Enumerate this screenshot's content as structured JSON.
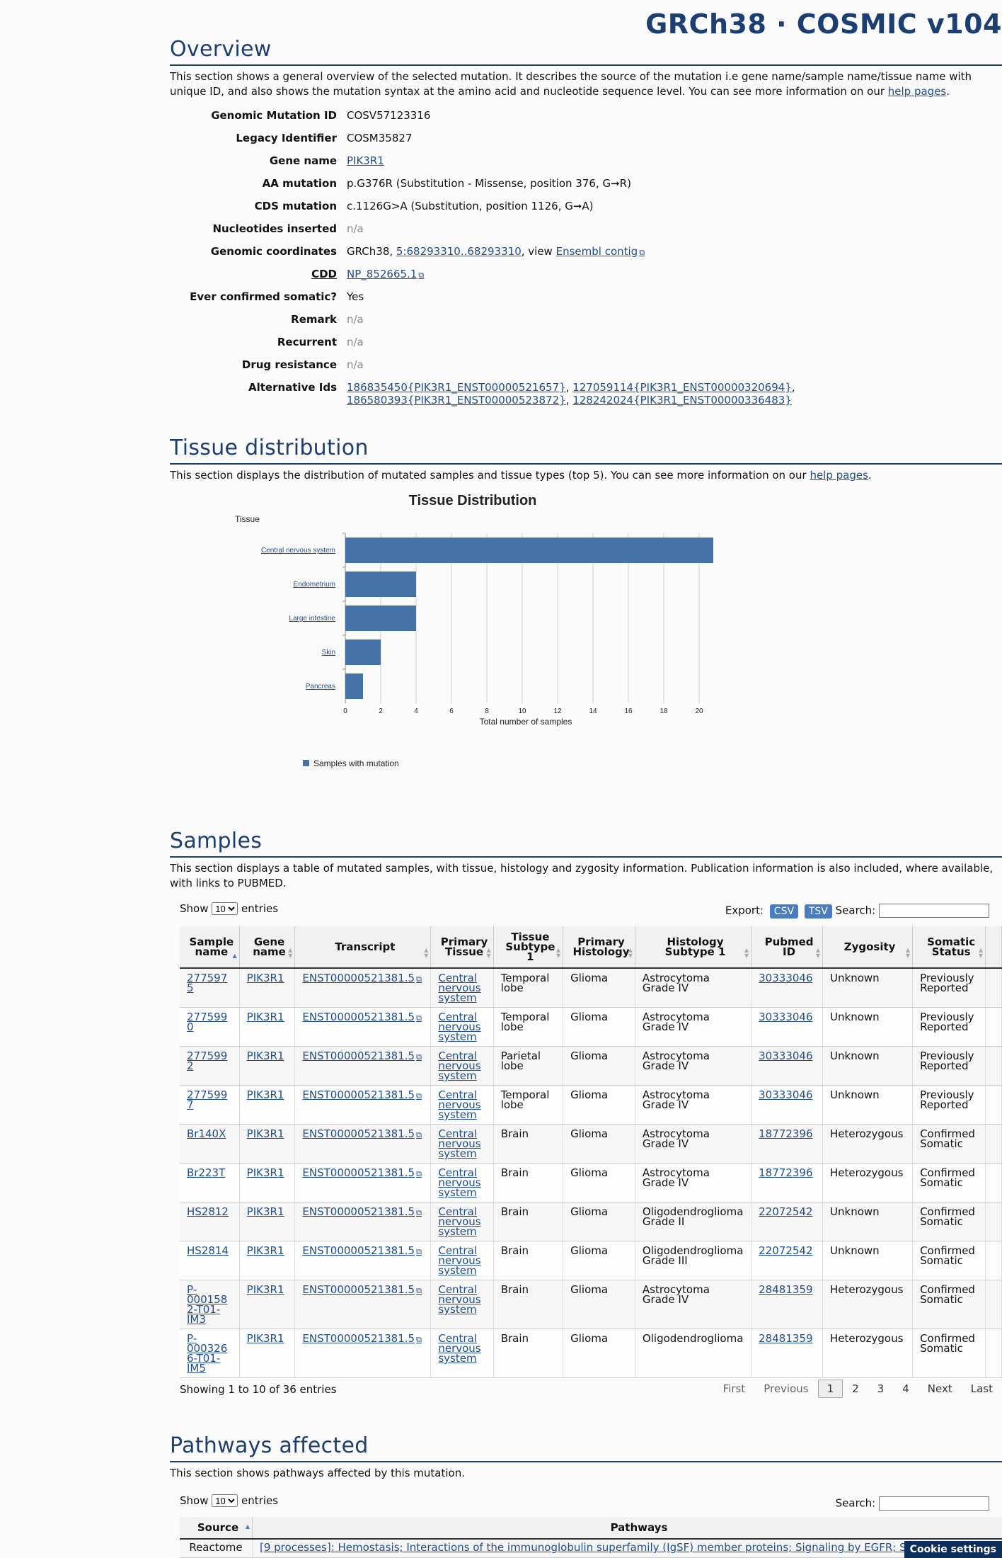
{
  "brand": "GRCh38 · COSMIC v104",
  "overview": {
    "title": "Overview",
    "desc_1": "This section shows a general overview of the selected mutation. It describes the source of the mutation i.e gene name/sample name/tissue name with unique ID, and also shows the mutation syntax at the amino acid and nucleotide sequence level. You can see more information on our ",
    "desc_link": "help pages",
    "desc_end": ".",
    "rows": [
      {
        "label": "Genomic Mutation ID",
        "value": "COSV57123316"
      },
      {
        "label": "Legacy Identifier",
        "value": "COSM35827"
      },
      {
        "label": "Gene name",
        "link": "PIK3R1"
      },
      {
        "label": "AA mutation",
        "value": "p.G376R (Substitution - Missense, position 376, G➞R)"
      },
      {
        "label": "CDS mutation",
        "value": "c.1126G>A (Substitution, position 1126, G➞A)"
      },
      {
        "label": "Nucleotides inserted",
        "na": "n/a"
      },
      {
        "label": "Genomic coordinates",
        "pre": "GRCh38, ",
        "link": "5:68293310..68293310",
        "mid": ", view ",
        "link2": "Ensembl contig"
      },
      {
        "label": "CDD",
        "link": "NP_852665.1"
      },
      {
        "label": "Ever confirmed somatic?",
        "value": "Yes"
      },
      {
        "label": "Remark",
        "na": "n/a"
      },
      {
        "label": "Recurrent",
        "na": "n/a"
      },
      {
        "label": "Drug resistance",
        "na": "n/a"
      },
      {
        "label": "Alternative Ids",
        "ids": [
          "186835450{PIK3R1_ENST00000521657}",
          "127059114{PIK3R1_ENST00000320694}",
          "186580393{PIK3R1_ENST00000523872}",
          "128242024{PIK3R1_ENST00000336483}"
        ]
      }
    ]
  },
  "tissue": {
    "title": "Tissue distribution",
    "desc": "This section displays the distribution of mutated samples and tissue types (top 5). You can see more information on our ",
    "desc_link": "help pages",
    "desc_end": "."
  },
  "chart_data": {
    "type": "bar",
    "orientation": "horizontal",
    "title": "Tissue Distribution",
    "ylabel": "Tissue",
    "xlabel": "Total number of samples",
    "categories": [
      "Central nervous system",
      "Endometrium",
      "Large intestine",
      "Skin",
      "Pancreas"
    ],
    "series": [
      {
        "name": "Samples with mutation",
        "values": [
          22,
          4,
          4,
          2,
          1
        ]
      }
    ],
    "xlim": [
      0,
      22
    ],
    "xticks": [
      0,
      2,
      4,
      6,
      8,
      10,
      12,
      14,
      16,
      18,
      20,
      22
    ],
    "grid": true,
    "legend": "bottom",
    "bar_color": "#4572a7"
  },
  "samples": {
    "title": "Samples",
    "desc": "This section displays a table of mutated samples, with tissue, histology and zygosity information. Publication information is also included, where available, with links to PUBMED.",
    "show": "Show",
    "entries_value": "10",
    "entries": "entries",
    "export": "Export:",
    "csv": "CSV",
    "tsv": "TSV",
    "search": "Search:",
    "headers": [
      "Sample name",
      "Gene name",
      "Transcript",
      "Primary Tissue",
      "Tissue Subtype 1",
      "Primary Histology",
      "Histology Subtype 1",
      "Pubmed ID",
      "Zygosity",
      "Somatic Status"
    ],
    "rows": [
      [
        "2775975",
        "PIK3R1",
        "ENST00000521381.5",
        "Central nervous system",
        "Temporal lobe",
        "Glioma",
        "Astrocytoma Grade IV",
        "30333046",
        "Unknown",
        "Previously Reported"
      ],
      [
        "2775990",
        "PIK3R1",
        "ENST00000521381.5",
        "Central nervous system",
        "Temporal lobe",
        "Glioma",
        "Astrocytoma Grade IV",
        "30333046",
        "Unknown",
        "Previously Reported"
      ],
      [
        "2775992",
        "PIK3R1",
        "ENST00000521381.5",
        "Central nervous system",
        "Parietal lobe",
        "Glioma",
        "Astrocytoma Grade IV",
        "30333046",
        "Unknown",
        "Previously Reported"
      ],
      [
        "2775997",
        "PIK3R1",
        "ENST00000521381.5",
        "Central nervous system",
        "Temporal lobe",
        "Glioma",
        "Astrocytoma Grade IV",
        "30333046",
        "Unknown",
        "Previously Reported"
      ],
      [
        "Br140X",
        "PIK3R1",
        "ENST00000521381.5",
        "Central nervous system",
        "Brain",
        "Glioma",
        "Astrocytoma Grade IV",
        "18772396",
        "Heterozygous",
        "Confirmed Somatic"
      ],
      [
        "Br223T",
        "PIK3R1",
        "ENST00000521381.5",
        "Central nervous system",
        "Brain",
        "Glioma",
        "Astrocytoma Grade IV",
        "18772396",
        "Heterozygous",
        "Confirmed Somatic"
      ],
      [
        "HS2812",
        "PIK3R1",
        "ENST00000521381.5",
        "Central nervous system",
        "Brain",
        "Glioma",
        "Oligodendroglioma Grade II",
        "22072542",
        "Unknown",
        "Confirmed Somatic"
      ],
      [
        "HS2814",
        "PIK3R1",
        "ENST00000521381.5",
        "Central nervous system",
        "Brain",
        "Glioma",
        "Oligodendroglioma Grade III",
        "22072542",
        "Unknown",
        "Confirmed Somatic"
      ],
      [
        "P-0001582-T01-IM3",
        "PIK3R1",
        "ENST00000521381.5",
        "Central nervous system",
        "Brain",
        "Glioma",
        "Astrocytoma Grade IV",
        "28481359",
        "Heterozygous",
        "Confirmed Somatic"
      ],
      [
        "P-0003266-T01-IM5",
        "PIK3R1",
        "ENST00000521381.5",
        "Central nervous system",
        "Brain",
        "Glioma",
        "Oligodendroglioma",
        "28481359",
        "Heterozygous",
        "Confirmed Somatic"
      ]
    ],
    "info": "Showing 1 to 10 of 36 entries",
    "pager": [
      "First",
      "Previous",
      "1",
      "2",
      "3",
      "4",
      "Next",
      "Last"
    ]
  },
  "pathways": {
    "title": "Pathways affected",
    "desc": "This section shows pathways affected by this mutation.",
    "show": "Show",
    "entries_value": "10",
    "entries": "entries",
    "search": "Search:",
    "headers": [
      "Source",
      "Pathways"
    ],
    "row_source": "Reactome",
    "row_pathways": "[9 processes]: Hemostasis; Interactions of the immunoglobulin superfamily (IgSF) member proteins; Signaling by EGFR; Signaling"
  },
  "cookie": "Cookie settings"
}
